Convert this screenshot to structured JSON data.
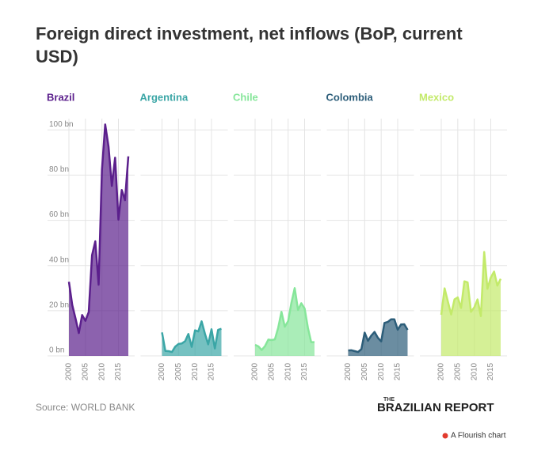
{
  "chart_data": {
    "type": "area",
    "title": "Foreign direct investment, net inflows (BoP, current USD)",
    "x": [
      2000,
      2001,
      2002,
      2003,
      2004,
      2005,
      2006,
      2007,
      2008,
      2009,
      2010,
      2011,
      2012,
      2013,
      2014,
      2015,
      2016,
      2017,
      2018
    ],
    "series": [
      {
        "name": "Brazil",
        "color": "#5b1f8c",
        "values": [
          32.8,
          22.5,
          16.6,
          10.1,
          18.1,
          15.5,
          19.4,
          44.6,
          50.7,
          31.5,
          82.4,
          102.4,
          92.6,
          75.2,
          87.7,
          60.3,
          73.4,
          68.9,
          88.3
        ]
      },
      {
        "name": "Argentina",
        "color": "#3ba6a6",
        "values": [
          10.4,
          2.2,
          2.1,
          1.7,
          4.1,
          5.3,
          5.5,
          6.5,
          9.7,
          4.0,
          11.3,
          10.8,
          15.3,
          9.8,
          5.1,
          11.8,
          3.3,
          11.5,
          12.0
        ]
      },
      {
        "name": "Chile",
        "color": "#86e69a",
        "values": [
          4.9,
          4.2,
          2.6,
          4.3,
          7.2,
          7.0,
          7.3,
          12.5,
          19.5,
          12.9,
          15.4,
          23.4,
          30.0,
          20.3,
          23.3,
          21.0,
          12.4,
          6.1,
          6.1
        ]
      },
      {
        "name": "Colombia",
        "color": "#2c5d79",
        "values": [
          2.4,
          2.5,
          2.1,
          1.7,
          3.0,
          10.3,
          6.7,
          9.0,
          10.6,
          8.0,
          6.4,
          14.6,
          15.0,
          16.2,
          16.2,
          11.6,
          13.9,
          14.0,
          11.5
        ]
      },
      {
        "name": "Mexico",
        "color": "#c3ea6a",
        "values": [
          18.2,
          29.9,
          24.1,
          18.3,
          25.0,
          25.9,
          21.2,
          33.0,
          32.5,
          19.5,
          21.5,
          25.0,
          17.6,
          46.0,
          29.7,
          34.7,
          37.3,
          31.1,
          34.1
        ]
      }
    ],
    "ylim": [
      0,
      105
    ],
    "yticks": [
      {
        "value": 0,
        "label": "0 bn"
      },
      {
        "value": 20,
        "label": "20 bn"
      },
      {
        "value": 40,
        "label": "40 bn"
      },
      {
        "value": 60,
        "label": "60 bn"
      },
      {
        "value": 80,
        "label": "80 bn"
      },
      {
        "value": 100,
        "label": "100 bn"
      }
    ],
    "xlim": [
      2000,
      2018
    ],
    "xticks": [
      2000,
      2005,
      2010,
      2015
    ],
    "grid": true,
    "source": "Source: WORLD BANK"
  },
  "footer": {
    "logo_top": "THE",
    "logo": "BRAZILIAN REPORT",
    "credit": "A Flourish chart"
  }
}
